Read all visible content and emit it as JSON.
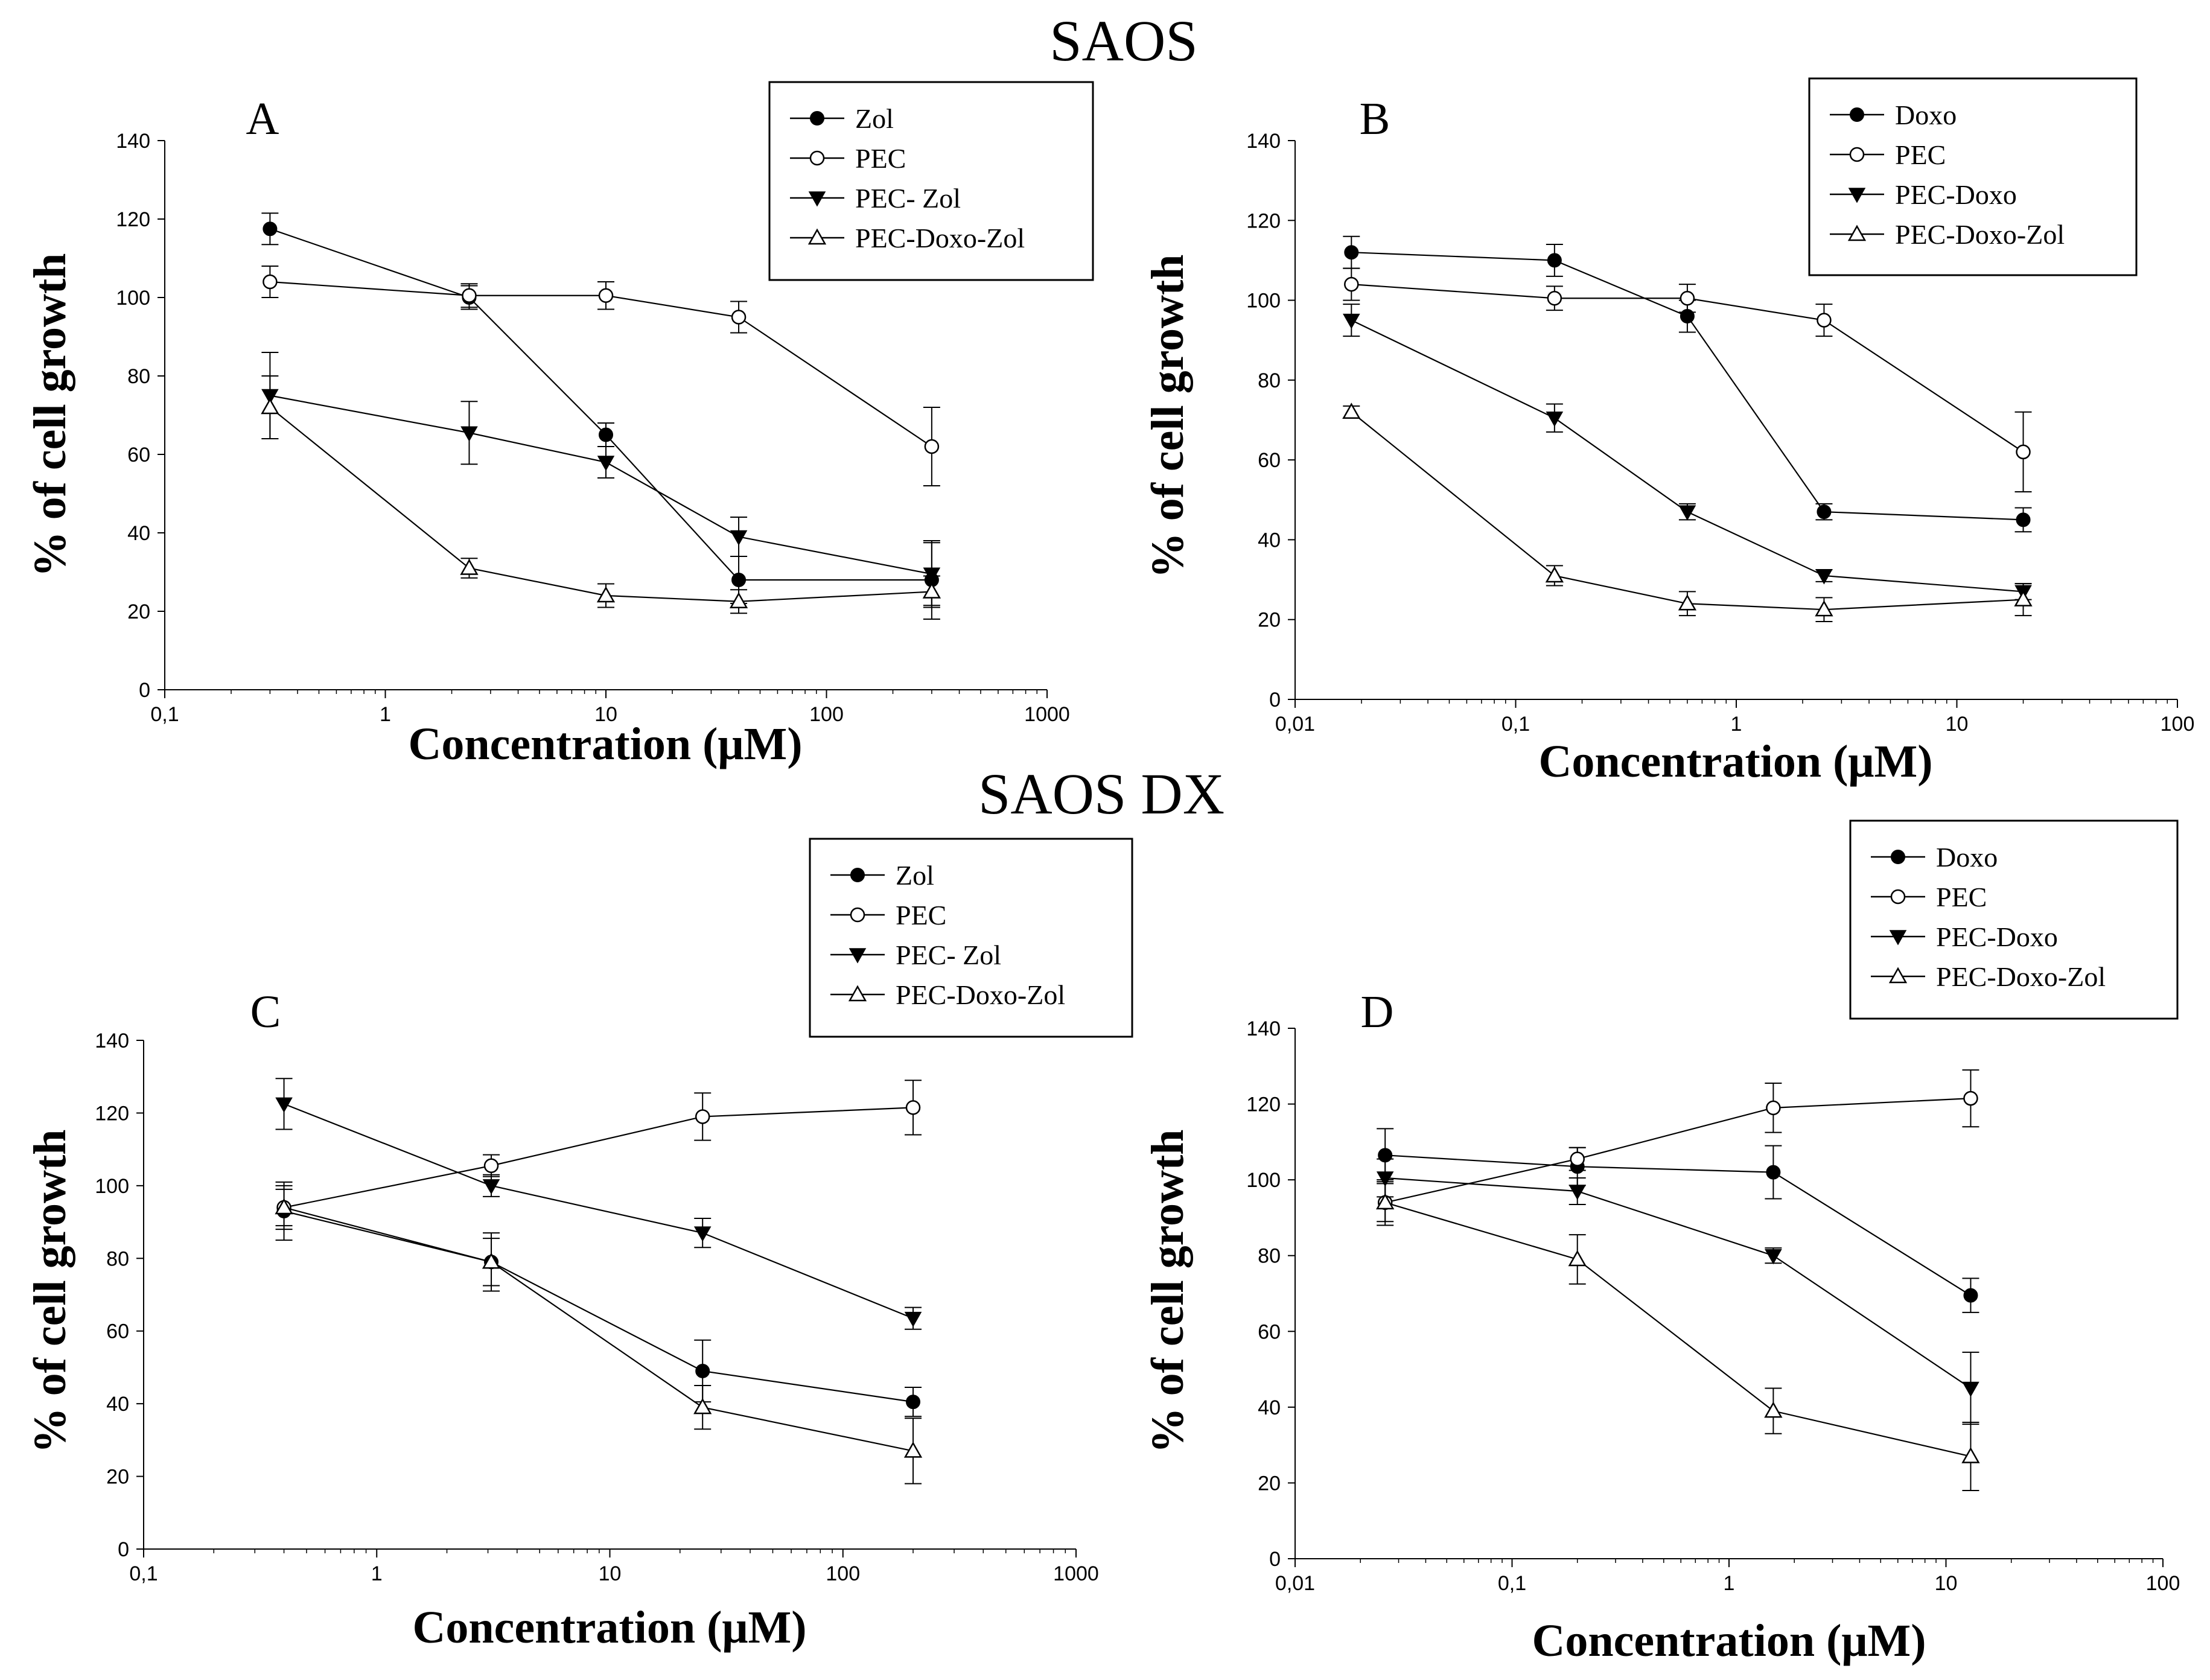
{
  "titles": {
    "top": "SAOS",
    "bottom": "SAOS DX"
  },
  "colors": {
    "ink": "#000000",
    "background": "#ffffff"
  },
  "chart_data": [
    {
      "panel": "A",
      "type": "line",
      "xscale": "log",
      "xlim": [
        0.1,
        1000
      ],
      "ylim": [
        0,
        140
      ],
      "xticks": [
        0.1,
        1,
        10,
        100,
        1000
      ],
      "xtick_labels": [
        "0,1",
        "1",
        "10",
        "100",
        "1000"
      ],
      "yticks": [
        0,
        20,
        40,
        60,
        80,
        100,
        120,
        140
      ],
      "xlabel": "Concentration (μM)",
      "ylabel": "% of cell growth",
      "legend_position": "top-right",
      "series": [
        {
          "name": "Zol",
          "marker": "circle-filled",
          "x": [
            0.3,
            2.4,
            10,
            40,
            300
          ],
          "y": [
            117.5,
            100,
            65,
            28,
            28
          ],
          "err": [
            4,
            3,
            3,
            6,
            10
          ]
        },
        {
          "name": "PEC",
          "marker": "circle-open",
          "x": [
            0.3,
            2.4,
            10,
            40,
            300
          ],
          "y": [
            104,
            100.5,
            100.5,
            95,
            62
          ],
          "err": [
            4,
            3,
            3.5,
            4,
            10
          ]
        },
        {
          "name": "PEC- Zol",
          "marker": "triangle-down-filled",
          "x": [
            0.3,
            2.4,
            10,
            40,
            300
          ],
          "y": [
            75,
            65.5,
            58,
            39,
            29.5
          ],
          "err": [
            11,
            8,
            4,
            5,
            8
          ]
        },
        {
          "name": "PEC-Doxo-Zol",
          "marker": "triangle-up-open",
          "x": [
            0.3,
            2.4,
            10,
            40,
            300
          ],
          "y": [
            72,
            31,
            24,
            22.5,
            25
          ],
          "err": [
            8,
            2.5,
            3,
            3,
            4
          ]
        }
      ]
    },
    {
      "panel": "B",
      "type": "line",
      "xscale": "log",
      "xlim": [
        0.01,
        100
      ],
      "ylim": [
        0,
        140
      ],
      "xticks": [
        0.01,
        0.1,
        1,
        10,
        100
      ],
      "xtick_labels": [
        "0,01",
        "0,1",
        "1",
        "10",
        "100"
      ],
      "yticks": [
        0,
        20,
        40,
        60,
        80,
        100,
        120,
        140
      ],
      "xlabel": "Concentration (μM)",
      "ylabel": "% of cell growth",
      "legend_position": "top-right",
      "series": [
        {
          "name": "Doxo",
          "marker": "circle-filled",
          "x": [
            0.018,
            0.15,
            0.6,
            2.5,
            20
          ],
          "y": [
            112,
            110,
            96,
            47,
            45
          ],
          "err": [
            4,
            4,
            4,
            2,
            3
          ]
        },
        {
          "name": "PEC",
          "marker": "circle-open",
          "x": [
            0.018,
            0.15,
            0.6,
            2.5,
            20
          ],
          "y": [
            104,
            100.5,
            100.5,
            95,
            62
          ],
          "err": [
            4,
            3,
            3.5,
            4,
            10
          ]
        },
        {
          "name": "PEC-Doxo",
          "marker": "triangle-down-filled",
          "x": [
            0.018,
            0.15,
            0.6,
            2.5,
            20
          ],
          "y": [
            95,
            70.5,
            47,
            31,
            27
          ],
          "err": [
            4,
            3.5,
            2,
            1.5,
            2
          ]
        },
        {
          "name": "PEC-Doxo-Zol",
          "marker": "triangle-up-open",
          "x": [
            0.018,
            0.15,
            0.6,
            2.5,
            20
          ],
          "y": [
            72,
            31,
            24,
            22.5,
            25
          ],
          "err": [
            1.5,
            2.5,
            3,
            3,
            4
          ]
        }
      ]
    },
    {
      "panel": "C",
      "type": "line",
      "xscale": "log",
      "xlim": [
        0.1,
        1000
      ],
      "ylim": [
        0,
        140
      ],
      "xticks": [
        0.1,
        1,
        10,
        100,
        1000
      ],
      "xtick_labels": [
        "0,1",
        "1",
        "10",
        "100",
        "1000"
      ],
      "yticks": [
        0,
        20,
        40,
        60,
        80,
        100,
        120,
        140
      ],
      "xlabel": "Concentration (μM)",
      "ylabel": "% of cell growth",
      "legend_position": "top-right",
      "series": [
        {
          "name": "Zol",
          "marker": "circle-filled",
          "x": [
            0.4,
            3.1,
            25,
            200
          ],
          "y": [
            93,
            79,
            49,
            40.5
          ],
          "err": [
            8,
            8,
            8.5,
            4
          ]
        },
        {
          "name": "PEC",
          "marker": "circle-open",
          "x": [
            0.4,
            3.1,
            25,
            200
          ],
          "y": [
            94,
            105.5,
            119,
            121.5
          ],
          "err": [
            6,
            3,
            6.5,
            7.5
          ]
        },
        {
          "name": "PEC- Zol",
          "marker": "triangle-down-filled",
          "x": [
            0.4,
            3.1,
            25,
            200
          ],
          "y": [
            122.5,
            100,
            87,
            63.5
          ],
          "err": [
            7,
            3,
            4,
            3
          ]
        },
        {
          "name": "PEC-Doxo-Zol",
          "marker": "triangle-up-open",
          "x": [
            0.4,
            3.1,
            25,
            200
          ],
          "y": [
            94,
            79,
            39,
            27
          ],
          "err": [
            5,
            6.5,
            6,
            9
          ]
        }
      ]
    },
    {
      "panel": "D",
      "type": "line",
      "xscale": "log",
      "xlim": [
        0.01,
        100
      ],
      "ylim": [
        0,
        140
      ],
      "xticks": [
        0.01,
        0.1,
        1,
        10,
        100
      ],
      "xtick_labels": [
        "0,01",
        "0,1",
        "1",
        "10",
        "100"
      ],
      "yticks": [
        0,
        20,
        40,
        60,
        80,
        100,
        120,
        140
      ],
      "xlabel": "Concentration (μM)",
      "ylabel": "% of cell growth",
      "legend_position": "top-right",
      "series": [
        {
          "name": "Doxo",
          "marker": "circle-filled",
          "x": [
            0.026,
            0.2,
            1.6,
            13
          ],
          "y": [
            106.5,
            103.5,
            102,
            69.5
          ],
          "err": [
            7,
            5,
            7,
            4.5
          ]
        },
        {
          "name": "PEC",
          "marker": "circle-open",
          "x": [
            0.026,
            0.2,
            1.6,
            13
          ],
          "y": [
            94,
            105.5,
            119,
            121.5
          ],
          "err": [
            6,
            3,
            6.5,
            7.5
          ]
        },
        {
          "name": "PEC-Doxo",
          "marker": "triangle-down-filled",
          "x": [
            0.026,
            0.2,
            1.6,
            13
          ],
          "y": [
            100.5,
            97,
            80,
            45
          ],
          "err": [
            5,
            3.5,
            2,
            9.5
          ]
        },
        {
          "name": "PEC-Doxo-Zol",
          "marker": "triangle-up-open",
          "x": [
            0.026,
            0.2,
            1.6,
            13
          ],
          "y": [
            94,
            79,
            39,
            27
          ],
          "err": [
            5,
            6.5,
            6,
            9
          ]
        }
      ]
    }
  ]
}
